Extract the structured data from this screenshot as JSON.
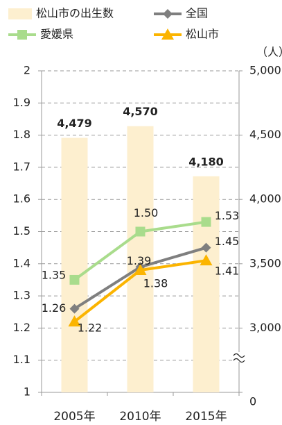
{
  "chart_data": {
    "type": "bar_line",
    "categories": [
      "2005年",
      "2010年",
      "2015年"
    ],
    "series": [
      {
        "name": "松山市の出生数",
        "type": "bar",
        "axis": "y2",
        "color": "#fdefcf",
        "label_color": "#f5b800",
        "values": [
          4479,
          4570,
          4180
        ],
        "value_labels": [
          "4,479",
          "4,570",
          "4,180"
        ]
      },
      {
        "name": "全国",
        "type": "line",
        "marker": "diamond",
        "color": "#7f7f7f",
        "values": [
          1.26,
          1.39,
          1.45
        ]
      },
      {
        "name": "愛媛県",
        "type": "line",
        "marker": "square",
        "color": "#a9dc8c",
        "values": [
          1.35,
          1.5,
          1.53
        ],
        "value_labels": [
          "1.35",
          "1.50",
          "1.53"
        ]
      },
      {
        "name": "松山市",
        "type": "line",
        "marker": "triangle",
        "color": "#fbb400",
        "values": [
          1.22,
          1.38,
          1.41
        ]
      }
    ],
    "ylim": [
      1,
      2
    ],
    "yticks": [
      1,
      1.1,
      1.2,
      1.3,
      1.4,
      1.5,
      1.6,
      1.7,
      1.8,
      1.9,
      2
    ],
    "y2label": "（人）",
    "y2lim": [
      0,
      5000
    ],
    "y2ticks": [
      0,
      {
        "value": 3000,
        "label": "3,000"
      },
      {
        "value": 3500,
        "label": "3,500"
      },
      {
        "value": 4000,
        "label": "4,000"
      },
      {
        "value": 4500,
        "label": "4,500"
      },
      {
        "value": 5000,
        "label": "5,000"
      }
    ],
    "axis_break": true,
    "grid": true
  }
}
